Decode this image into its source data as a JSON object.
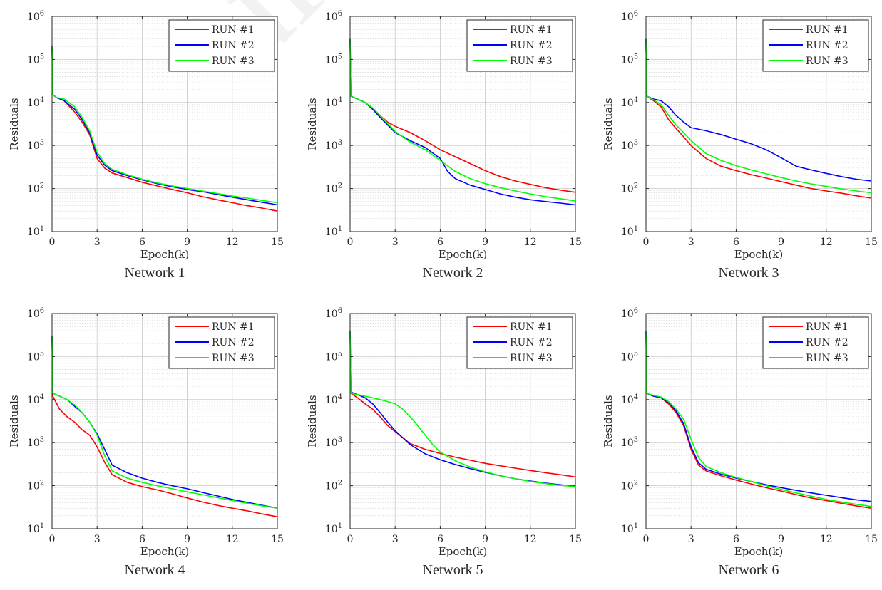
{
  "watermark": "Journal Pre-proof",
  "chart_data": [
    {
      "type": "line",
      "caption": "Network 1",
      "xlabel": "Epoch(k)",
      "ylabel": "Residuals",
      "xlim": [
        0,
        15
      ],
      "ylim": [
        10,
        1000000
      ],
      "yscale": "log",
      "xticks": [
        0,
        3,
        6,
        9,
        12,
        15
      ],
      "yticks": [
        10,
        100,
        1000,
        10000,
        100000,
        1000000
      ],
      "grid": true,
      "legend": "top-right",
      "series": [
        {
          "name": "RUN #1",
          "color": "#ff0000",
          "x": [
            0,
            0.05,
            0.3,
            0.8,
            1.5,
            2.0,
            2.5,
            3.0,
            3.5,
            4.0,
            5.0,
            6.0,
            7.0,
            8.0,
            9.0,
            10.0,
            11.0,
            12.0,
            13.0,
            14.0,
            15.0
          ],
          "y": [
            200000,
            15000,
            13000,
            11000,
            6000,
            3500,
            1800,
            500,
            300,
            230,
            180,
            140,
            115,
            95,
            80,
            65,
            55,
            47,
            40,
            35,
            30
          ]
        },
        {
          "name": "RUN #2",
          "color": "#0000ff",
          "x": [
            0,
            0.05,
            0.3,
            0.8,
            1.5,
            2.0,
            2.5,
            3.0,
            3.5,
            4.0,
            5.0,
            6.0,
            7.0,
            8.0,
            9.0,
            10.0,
            11.0,
            12.0,
            13.0,
            14.0,
            15.0
          ],
          "y": [
            200000,
            15000,
            13000,
            11000,
            7000,
            4000,
            2000,
            600,
            350,
            260,
            200,
            160,
            130,
            110,
            95,
            85,
            73,
            63,
            55,
            48,
            42
          ]
        },
        {
          "name": "RUN #3",
          "color": "#00ff00",
          "x": [
            0,
            0.05,
            0.3,
            0.8,
            1.5,
            2.0,
            2.5,
            3.0,
            3.5,
            4.0,
            5.0,
            6.0,
            7.0,
            8.0,
            9.0,
            10.0,
            11.0,
            12.0,
            13.0,
            14.0,
            15.0
          ],
          "y": [
            200000,
            15000,
            13000,
            12000,
            8000,
            4500,
            2200,
            700,
            380,
            280,
            210,
            165,
            135,
            115,
            100,
            88,
            77,
            67,
            60,
            53,
            47
          ]
        }
      ]
    },
    {
      "type": "line",
      "caption": "Network 2",
      "xlabel": "Epoch(k)",
      "ylabel": "Residuals",
      "xlim": [
        0,
        15
      ],
      "ylim": [
        10,
        1000000
      ],
      "yscale": "log",
      "xticks": [
        0,
        3,
        6,
        9,
        12,
        15
      ],
      "yticks": [
        10,
        100,
        1000,
        10000,
        100000,
        1000000
      ],
      "grid": true,
      "legend": "top-right",
      "series": [
        {
          "name": "RUN #1",
          "color": "#ff0000",
          "x": [
            0,
            0.05,
            0.5,
            1.0,
            1.5,
            2.0,
            2.5,
            3.0,
            4.0,
            5.0,
            6.0,
            7.0,
            8.0,
            9.0,
            10.0,
            11.0,
            12.0,
            13.0,
            14.0,
            15.0
          ],
          "y": [
            300000,
            14000,
            12000,
            10000,
            7000,
            5000,
            3500,
            2800,
            2000,
            1300,
            800,
            550,
            380,
            260,
            190,
            150,
            125,
            105,
            92,
            82
          ]
        },
        {
          "name": "RUN #2",
          "color": "#0000ff",
          "x": [
            0,
            0.05,
            0.5,
            1.0,
            1.5,
            2.0,
            2.5,
            3.0,
            4.0,
            5.0,
            6.0,
            6.5,
            7.0,
            8.0,
            9.0,
            10.0,
            11.0,
            12.0,
            13.0,
            14.0,
            15.0
          ],
          "y": [
            300000,
            14000,
            12000,
            10000,
            7000,
            4500,
            3000,
            2000,
            1300,
            900,
            500,
            250,
            170,
            120,
            95,
            75,
            63,
            55,
            50,
            46,
            42
          ]
        },
        {
          "name": "RUN #3",
          "color": "#00ff00",
          "x": [
            0,
            0.05,
            0.5,
            1.0,
            1.5,
            2.0,
            2.5,
            3.0,
            4.0,
            5.0,
            6.0,
            7.0,
            8.0,
            9.0,
            10.0,
            11.0,
            12.0,
            13.0,
            14.0,
            15.0
          ],
          "y": [
            300000,
            14000,
            12000,
            10000,
            7500,
            5000,
            3300,
            2100,
            1200,
            800,
            450,
            250,
            170,
            130,
            105,
            88,
            75,
            65,
            58,
            52
          ]
        }
      ]
    },
    {
      "type": "line",
      "caption": "Network 3",
      "xlabel": "Epoch(k)",
      "ylabel": "Residuals",
      "xlim": [
        0,
        15
      ],
      "ylim": [
        10,
        1000000
      ],
      "yscale": "log",
      "xticks": [
        0,
        3,
        6,
        9,
        12,
        15
      ],
      "yticks": [
        10,
        100,
        1000,
        10000,
        100000,
        1000000
      ],
      "grid": true,
      "legend": "top-right",
      "series": [
        {
          "name": "RUN #1",
          "color": "#ff0000",
          "x": [
            0,
            0.05,
            0.5,
            1.0,
            1.5,
            2.0,
            2.5,
            3.0,
            4.0,
            5.0,
            6.0,
            7.0,
            8.0,
            9.0,
            10.0,
            11.0,
            12.0,
            13.0,
            14.0,
            15.0
          ],
          "y": [
            300000,
            14000,
            11000,
            8000,
            4000,
            2500,
            1600,
            1000,
            500,
            330,
            260,
            210,
            175,
            145,
            120,
            100,
            88,
            78,
            68,
            60
          ]
        },
        {
          "name": "RUN #2",
          "color": "#0000ff",
          "x": [
            0,
            0.05,
            0.5,
            1.0,
            1.5,
            2.0,
            2.5,
            3.0,
            4.0,
            5.0,
            6.0,
            7.0,
            8.0,
            9.0,
            10.0,
            11.0,
            12.0,
            13.0,
            14.0,
            15.0
          ],
          "y": [
            300000,
            14000,
            12000,
            11000,
            8000,
            5000,
            3500,
            2600,
            2200,
            1800,
            1400,
            1100,
            800,
            520,
            330,
            270,
            225,
            190,
            165,
            150
          ]
        },
        {
          "name": "RUN #3",
          "color": "#00ff00",
          "x": [
            0,
            0.05,
            0.5,
            1.0,
            1.5,
            2.0,
            2.5,
            3.0,
            4.0,
            5.0,
            6.0,
            7.0,
            8.0,
            9.0,
            10.0,
            11.0,
            12.0,
            13.0,
            14.0,
            15.0
          ],
          "y": [
            300000,
            14000,
            11500,
            9000,
            5000,
            3000,
            2000,
            1300,
            650,
            450,
            340,
            270,
            220,
            180,
            150,
            128,
            112,
            98,
            88,
            80
          ]
        }
      ]
    },
    {
      "type": "line",
      "caption": "Network 4",
      "xlabel": "Epoch(k)",
      "ylabel": "Residuals",
      "xlim": [
        0,
        15
      ],
      "ylim": [
        10,
        1000000
      ],
      "yscale": "log",
      "xticks": [
        0,
        3,
        6,
        9,
        12,
        15
      ],
      "yticks": [
        10,
        100,
        1000,
        10000,
        100000,
        1000000
      ],
      "grid": true,
      "legend": "top-right",
      "series": [
        {
          "name": "RUN #1",
          "color": "#ff0000",
          "x": [
            0,
            0.05,
            0.5,
            1.0,
            1.5,
            2.0,
            2.5,
            3.0,
            3.5,
            4.0,
            5.0,
            6.0,
            7.0,
            8.0,
            9.0,
            10.0,
            11.0,
            12.0,
            13.0,
            14.0,
            15.0
          ],
          "y": [
            300000,
            12000,
            6000,
            4000,
            3000,
            2000,
            1500,
            800,
            350,
            180,
            120,
            95,
            80,
            65,
            52,
            42,
            35,
            30,
            26,
            22,
            19
          ]
        },
        {
          "name": "RUN #2",
          "color": "#0000ff",
          "x": [
            0,
            0.05,
            0.5,
            1.0,
            1.5,
            2.0,
            2.5,
            3.0,
            3.5,
            4.0,
            5.0,
            6.0,
            7.0,
            8.0,
            9.0,
            10.0,
            11.0,
            12.0,
            13.0,
            14.0,
            15.0
          ],
          "y": [
            300000,
            14000,
            12000,
            10000,
            7000,
            5000,
            3000,
            1600,
            700,
            300,
            200,
            150,
            120,
            100,
            85,
            70,
            58,
            48,
            41,
            35,
            30
          ]
        },
        {
          "name": "RUN #3",
          "color": "#00ff00",
          "x": [
            0,
            0.05,
            0.5,
            1.0,
            1.5,
            2.0,
            2.5,
            3.0,
            3.5,
            4.0,
            5.0,
            6.0,
            7.0,
            8.0,
            9.0,
            10.0,
            11.0,
            12.0,
            13.0,
            14.0,
            15.0
          ],
          "y": [
            300000,
            14000,
            12000,
            10000,
            7500,
            5000,
            3000,
            1500,
            500,
            220,
            150,
            120,
            100,
            85,
            72,
            62,
            53,
            45,
            39,
            34,
            30
          ]
        }
      ]
    },
    {
      "type": "line",
      "caption": "Network 5",
      "xlabel": "Epoch(k)",
      "ylabel": "Residuals",
      "xlim": [
        0,
        15
      ],
      "ylim": [
        10,
        1000000
      ],
      "yscale": "log",
      "xticks": [
        0,
        3,
        6,
        9,
        12,
        15
      ],
      "yticks": [
        10,
        100,
        1000,
        10000,
        100000,
        1000000
      ],
      "grid": true,
      "legend": "top-right",
      "series": [
        {
          "name": "RUN #1",
          "color": "#ff0000",
          "x": [
            0,
            0.05,
            0.5,
            1.0,
            1.5,
            2.0,
            2.5,
            3.0,
            4.0,
            5.0,
            6.0,
            7.0,
            8.0,
            9.0,
            10.0,
            11.0,
            12.0,
            13.0,
            14.0,
            15.0
          ],
          "y": [
            400000,
            14000,
            11000,
            8000,
            6000,
            4000,
            2500,
            1800,
            950,
            700,
            560,
            460,
            390,
            330,
            290,
            255,
            225,
            200,
            180,
            160
          ]
        },
        {
          "name": "RUN #2",
          "color": "#0000ff",
          "x": [
            0,
            0.05,
            0.5,
            1.0,
            1.5,
            2.0,
            2.5,
            3.0,
            4.0,
            5.0,
            6.0,
            7.0,
            8.0,
            9.0,
            10.0,
            11.0,
            12.0,
            13.0,
            14.0,
            15.0
          ],
          "y": [
            400000,
            15000,
            13000,
            11000,
            8000,
            5000,
            3000,
            1900,
            900,
            550,
            400,
            310,
            250,
            205,
            170,
            145,
            128,
            115,
            105,
            97
          ]
        },
        {
          "name": "RUN #3",
          "color": "#00ff00",
          "x": [
            0,
            0.05,
            0.5,
            1.0,
            1.5,
            2.0,
            2.5,
            3.0,
            3.5,
            4.0,
            4.5,
            5.0,
            5.5,
            6.0,
            7.0,
            8.0,
            9.0,
            10.0,
            11.0,
            12.0,
            13.0,
            14.0,
            15.0
          ],
          "y": [
            400000,
            14000,
            13000,
            12000,
            11000,
            10000,
            9000,
            8000,
            6000,
            4000,
            2500,
            1500,
            900,
            600,
            380,
            270,
            210,
            170,
            145,
            125,
            112,
            102,
            95
          ]
        }
      ]
    },
    {
      "type": "line",
      "caption": "Network 6",
      "xlabel": "Epoch(k)",
      "ylabel": "Residuals",
      "xlim": [
        0,
        15
      ],
      "ylim": [
        10,
        1000000
      ],
      "yscale": "log",
      "xticks": [
        0,
        3,
        6,
        9,
        12,
        15
      ],
      "yticks": [
        10,
        100,
        1000,
        10000,
        100000,
        1000000
      ],
      "grid": true,
      "legend": "top-right",
      "series": [
        {
          "name": "RUN #1",
          "color": "#ff0000",
          "x": [
            0,
            0.05,
            0.5,
            1.0,
            1.5,
            2.0,
            2.5,
            3.0,
            3.5,
            4.0,
            5.0,
            6.0,
            7.0,
            8.0,
            9.0,
            10.0,
            11.0,
            12.0,
            13.0,
            14.0,
            15.0
          ],
          "y": [
            400000,
            14000,
            12000,
            11000,
            8000,
            5000,
            2500,
            700,
            300,
            220,
            170,
            135,
            110,
            90,
            75,
            62,
            52,
            45,
            39,
            34,
            30
          ]
        },
        {
          "name": "RUN #2",
          "color": "#0000ff",
          "x": [
            0,
            0.05,
            0.5,
            1.0,
            1.5,
            2.0,
            2.5,
            3.0,
            3.5,
            4.0,
            5.0,
            6.0,
            7.0,
            8.0,
            9.0,
            10.0,
            11.0,
            12.0,
            13.0,
            14.0,
            15.0
          ],
          "y": [
            400000,
            14000,
            12000,
            11000,
            8500,
            5500,
            2800,
            800,
            340,
            240,
            185,
            150,
            125,
            105,
            90,
            78,
            68,
            60,
            53,
            47,
            43
          ]
        },
        {
          "name": "RUN #3",
          "color": "#00ff00",
          "x": [
            0,
            0.05,
            0.5,
            1.0,
            1.5,
            2.0,
            2.5,
            3.0,
            3.5,
            4.0,
            5.0,
            6.0,
            7.0,
            8.0,
            9.0,
            10.0,
            11.0,
            12.0,
            13.0,
            14.0,
            15.0
          ],
          "y": [
            400000,
            14000,
            12500,
            11500,
            9000,
            6000,
            3500,
            1200,
            450,
            280,
            200,
            155,
            125,
            100,
            82,
            68,
            57,
            48,
            42,
            37,
            33
          ]
        }
      ]
    }
  ]
}
